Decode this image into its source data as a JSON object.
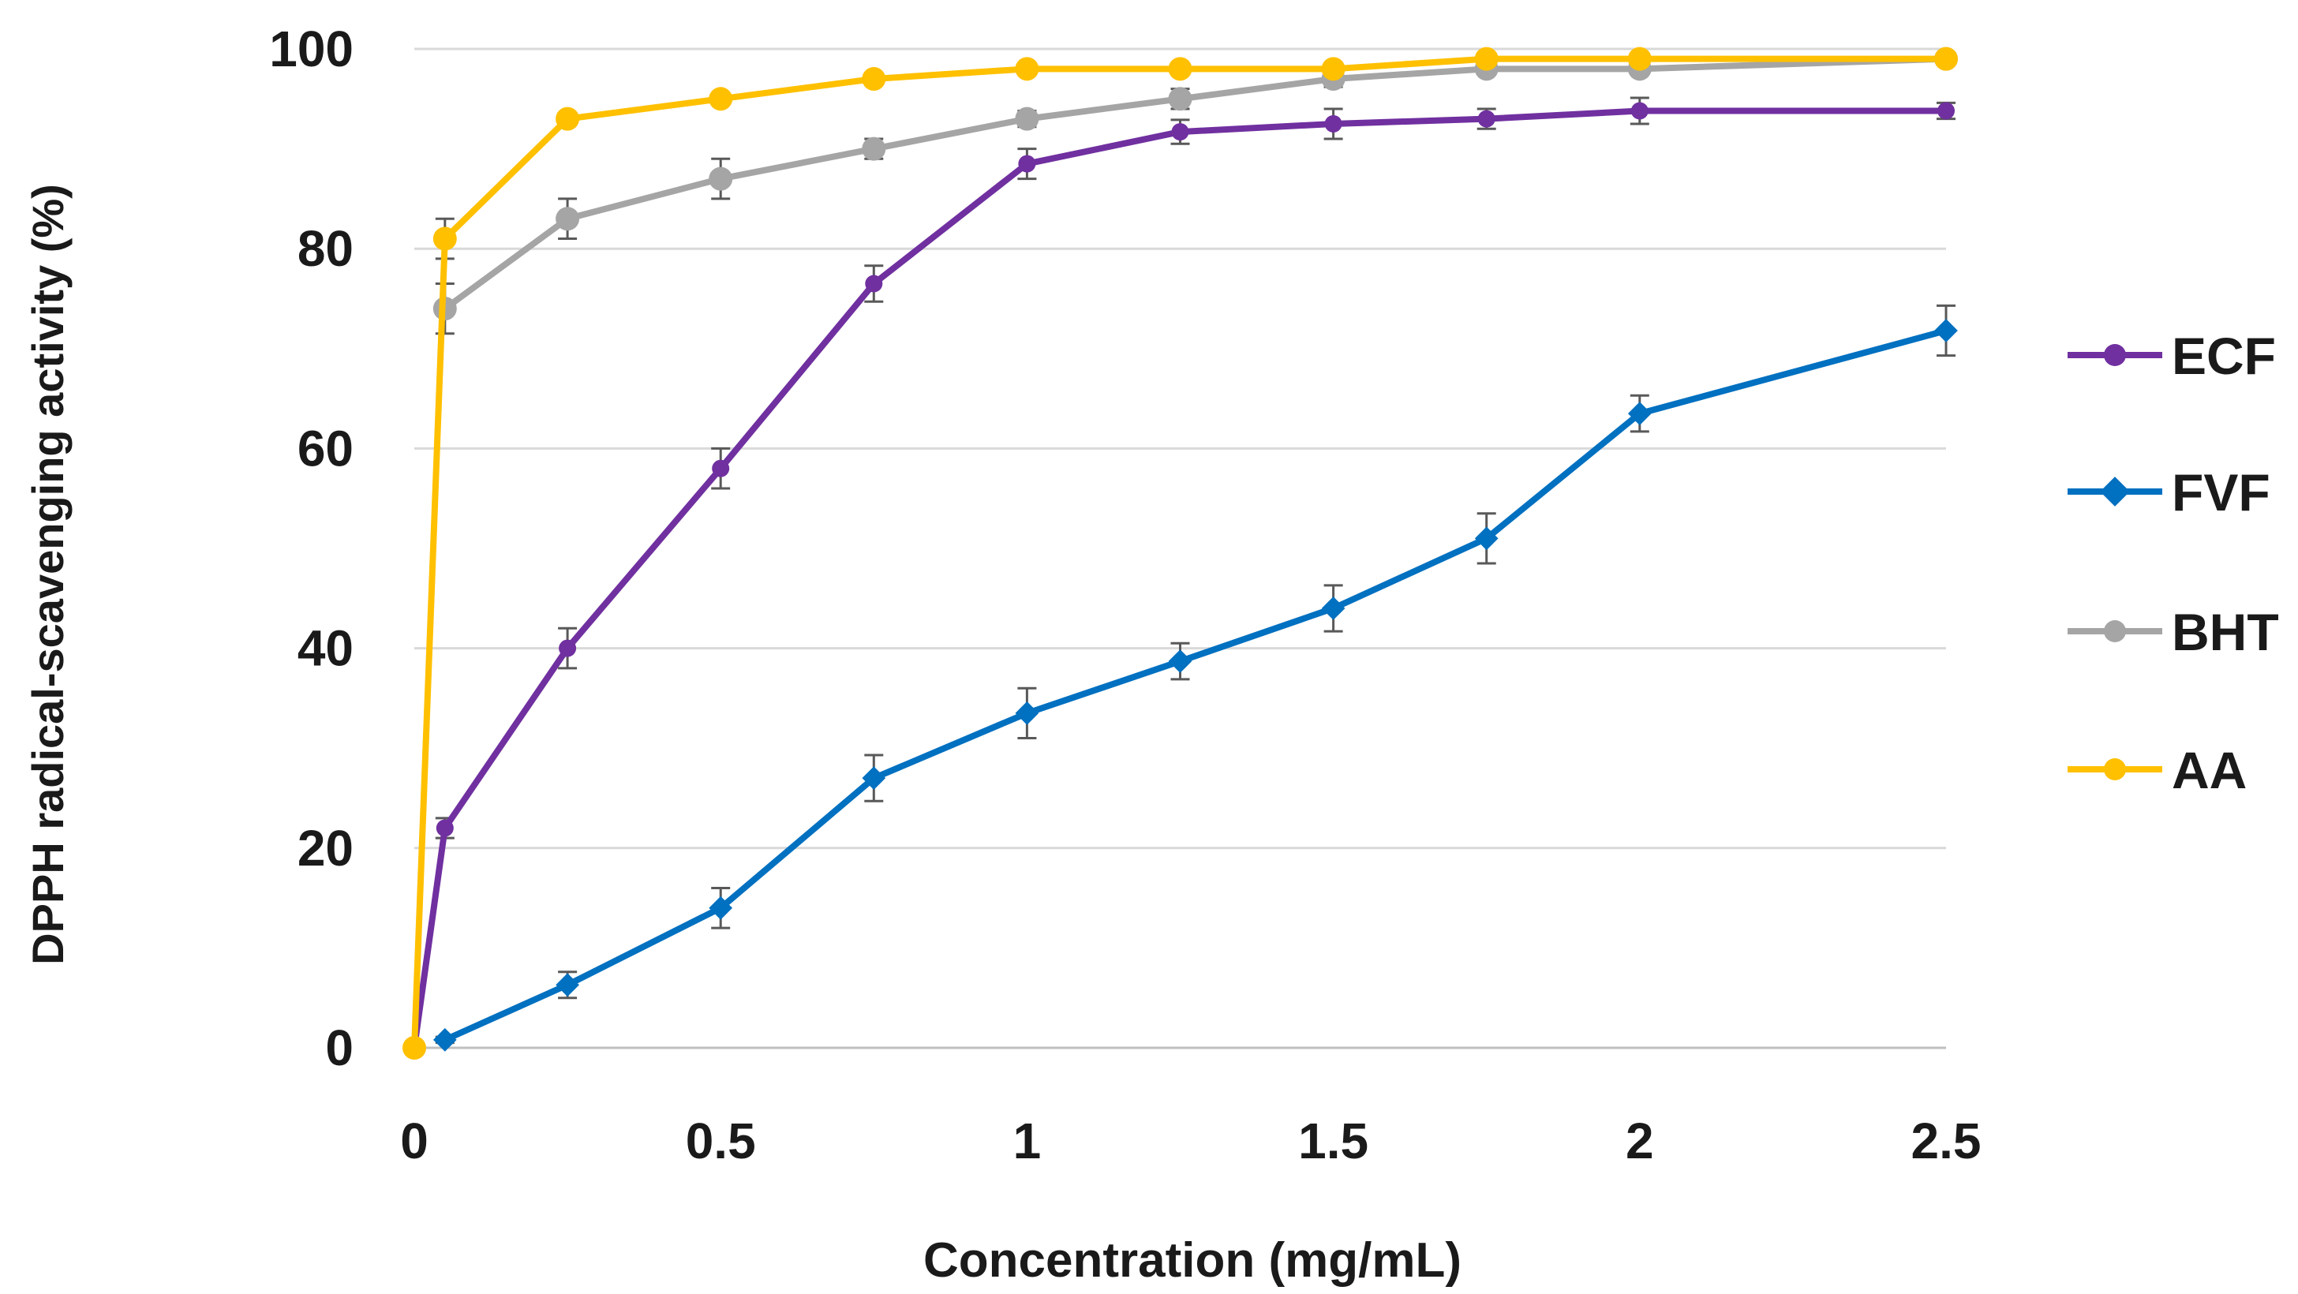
{
  "chart_data": {
    "type": "line",
    "title": "",
    "xlabel": "Concentration (mg/mL)",
    "ylabel": "DPPH radical-scavenging activity (%)",
    "xlim": [
      0,
      2.5
    ],
    "ylim": [
      0,
      100
    ],
    "x_ticks": [
      "0",
      "0.5",
      "1",
      "1.5",
      "2",
      "2.5"
    ],
    "y_ticks": [
      "0",
      "20",
      "40",
      "60",
      "80",
      "100"
    ],
    "grid": "horizontal",
    "legend_position": "right",
    "series": [
      {
        "name": "ECF",
        "color": "#7030A0",
        "marker": "circle",
        "x": [
          0,
          0.05,
          0.25,
          0.5,
          0.75,
          1,
          1.25,
          1.5,
          1.75,
          2,
          2.5
        ],
        "y": [
          0,
          22,
          40,
          58,
          76.5,
          88.5,
          91.7,
          92.5,
          93,
          93.8,
          93.8
        ],
        "error": [
          0,
          1,
          2,
          2,
          1.8,
          1.5,
          1.2,
          1.5,
          1,
          1.3,
          0.8
        ]
      },
      {
        "name": "FVF",
        "color": "#0070C0",
        "marker": "diamond",
        "x": [
          0.05,
          0.25,
          0.5,
          0.75,
          1,
          1.25,
          1.5,
          1.75,
          2,
          2.5
        ],
        "y": [
          0.8,
          6.3,
          14,
          27,
          33.5,
          38.7,
          44,
          51,
          63.5,
          71.8
        ],
        "error": [
          0.3,
          1.3,
          2,
          2.3,
          2.5,
          1.8,
          2.3,
          2.5,
          1.8,
          2.5
        ]
      },
      {
        "name": "BHT",
        "color": "#A5A5A5",
        "marker": "circle",
        "x": [
          0.05,
          0.25,
          0.5,
          0.75,
          1,
          1.25,
          1.5,
          1.75,
          2,
          2.5
        ],
        "y": [
          74,
          83,
          87,
          90,
          93,
          95,
          97,
          98,
          98,
          99
        ],
        "error": [
          2.5,
          2,
          2,
          1,
          0.8,
          1,
          0.8,
          0.5,
          0.5,
          0.4
        ]
      },
      {
        "name": "AA",
        "color": "#FFC000",
        "marker": "circle",
        "x": [
          0,
          0.05,
          0.25,
          0.5,
          0.75,
          1,
          1.25,
          1.5,
          1.75,
          2,
          2.5
        ],
        "y": [
          0,
          81,
          93,
          95,
          97,
          98,
          98,
          98,
          99,
          99,
          99
        ],
        "error": [
          0,
          2,
          0.5,
          0.5,
          0.5,
          0.5,
          0.5,
          0.5,
          0.5,
          0.5,
          0.4
        ]
      }
    ]
  }
}
